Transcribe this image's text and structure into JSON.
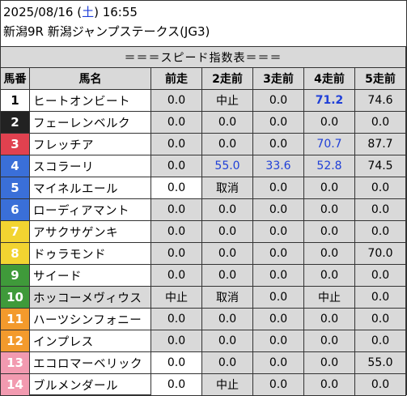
{
  "header": {
    "date": "2025/08/16 (",
    "weekday": "土",
    "time": ") 16:55",
    "race": "新潟9R 新潟ジャンプステークス(JG3)"
  },
  "table": {
    "title": "＝＝＝スピード指数表＝＝＝",
    "columns": [
      "馬番",
      "馬名",
      "前走",
      "2走前",
      "3走前",
      "4走前",
      "5走前"
    ],
    "colors": {
      "frame1": "#ffffff",
      "frame2": "#222222",
      "frame3": "#e0414f",
      "frame4": "#3a6fd8",
      "frame5": "#f2d431",
      "frame6": "#3f9a3a",
      "frame7": "#f39a2c",
      "frame8": "#f29ab0",
      "highlight": "#1f3fd8"
    },
    "rows": [
      {
        "num": "1",
        "name": "ヒートオンビート",
        "v": [
          "0.0",
          "中止",
          "0.0",
          "71.2",
          "74.6"
        ],
        "hl": [
          "",
          "",
          "",
          "b",
          ""
        ],
        "bg": "#ffffff",
        "fg": "#000000",
        "nmgray": false,
        "w0": false
      },
      {
        "num": "2",
        "name": "フェーレンベルク",
        "v": [
          "0.0",
          "0.0",
          "0.0",
          "0.0",
          "0.0"
        ],
        "hl": [
          "",
          "",
          "",
          "",
          ""
        ],
        "bg": "#222222",
        "fg": "#ffffff",
        "nmgray": false,
        "w0": false
      },
      {
        "num": "3",
        "name": "フレッチア",
        "v": [
          "0.0",
          "0.0",
          "0.0",
          "70.7",
          "87.7"
        ],
        "hl": [
          "",
          "",
          "",
          "h",
          ""
        ],
        "bg": "#e0414f",
        "fg": "#ffffff",
        "nmgray": false,
        "w0": false
      },
      {
        "num": "4",
        "name": "スコラーリ",
        "v": [
          "0.0",
          "55.0",
          "33.6",
          "52.8",
          "74.5"
        ],
        "hl": [
          "",
          "h",
          "h",
          "h",
          ""
        ],
        "bg": "#3a6fd8",
        "fg": "#ffffff",
        "nmgray": false,
        "w0": false
      },
      {
        "num": "5",
        "name": "マイネルエール",
        "v": [
          "0.0",
          "取消",
          "0.0",
          "0.0",
          "0.0"
        ],
        "hl": [
          "",
          "",
          "",
          "",
          ""
        ],
        "bg": "#3a6fd8",
        "fg": "#ffffff",
        "nmgray": false,
        "w0": true
      },
      {
        "num": "6",
        "name": "ローディアマント",
        "v": [
          "0.0",
          "0.0",
          "0.0",
          "0.0",
          "0.0"
        ],
        "hl": [
          "",
          "",
          "",
          "",
          ""
        ],
        "bg": "#3a6fd8",
        "fg": "#ffffff",
        "nmgray": false,
        "w0": false
      },
      {
        "num": "7",
        "name": "アサクサゲンキ",
        "v": [
          "0.0",
          "0.0",
          "0.0",
          "0.0",
          "0.0"
        ],
        "hl": [
          "",
          "",
          "",
          "",
          ""
        ],
        "bg": "#f2d431",
        "fg": "#ffffff",
        "nmgray": false,
        "w0": false
      },
      {
        "num": "8",
        "name": "ドゥラモンド",
        "v": [
          "0.0",
          "0.0",
          "0.0",
          "0.0",
          "70.0"
        ],
        "hl": [
          "",
          "",
          "",
          "",
          ""
        ],
        "bg": "#f2d431",
        "fg": "#ffffff",
        "nmgray": false,
        "w0": false
      },
      {
        "num": "9",
        "name": "サイード",
        "v": [
          "0.0",
          "0.0",
          "0.0",
          "0.0",
          "0.0"
        ],
        "hl": [
          "",
          "",
          "",
          "",
          ""
        ],
        "bg": "#3f9a3a",
        "fg": "#ffffff",
        "nmgray": false,
        "w0": false
      },
      {
        "num": "10",
        "name": "ホッコーメヴィウス",
        "v": [
          "中止",
          "取消",
          "0.0",
          "中止",
          "0.0"
        ],
        "hl": [
          "",
          "",
          "",
          "",
          ""
        ],
        "bg": "#3f9a3a",
        "fg": "#ffffff",
        "nmgray": true,
        "w0": false
      },
      {
        "num": "11",
        "name": "ハーツシンフォニー",
        "v": [
          "0.0",
          "0.0",
          "0.0",
          "0.0",
          "0.0"
        ],
        "hl": [
          "",
          "",
          "",
          "",
          ""
        ],
        "bg": "#f39a2c",
        "fg": "#ffffff",
        "nmgray": false,
        "w0": false
      },
      {
        "num": "12",
        "name": "インプレス",
        "v": [
          "0.0",
          "0.0",
          "0.0",
          "0.0",
          "0.0"
        ],
        "hl": [
          "",
          "",
          "",
          "",
          ""
        ],
        "bg": "#f39a2c",
        "fg": "#ffffff",
        "nmgray": false,
        "w0": false
      },
      {
        "num": "13",
        "name": "エコロマーベリック",
        "v": [
          "0.0",
          "0.0",
          "0.0",
          "0.0",
          "55.0"
        ],
        "hl": [
          "",
          "",
          "",
          "",
          ""
        ],
        "bg": "#f29ab0",
        "fg": "#ffffff",
        "nmgray": false,
        "w0": true
      },
      {
        "num": "14",
        "name": "ブルメンダール",
        "v": [
          "0.0",
          "中止",
          "0.0",
          "0.0",
          "0.0"
        ],
        "hl": [
          "",
          "",
          "",
          "",
          ""
        ],
        "bg": "#f29ab0",
        "fg": "#ffffff",
        "nmgray": false,
        "w0": true
      }
    ]
  }
}
